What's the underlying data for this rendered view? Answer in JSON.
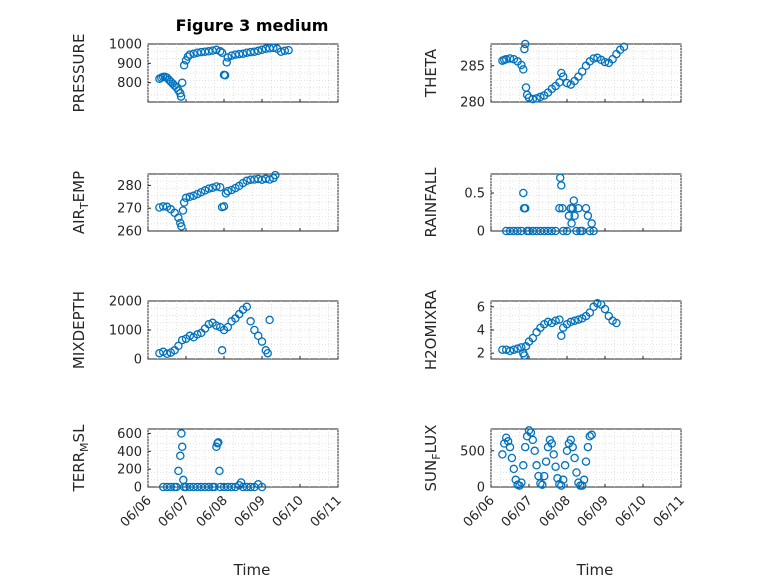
{
  "title": "Figure 3 medium",
  "xlabel": "Time",
  "marker_color": "#0072BD",
  "x_ticks": [
    "06/06",
    "06/07",
    "06/08",
    "06/09",
    "06/10",
    "06/11"
  ],
  "chart_data": [
    {
      "type": "scatter",
      "id": "pressure",
      "ylabel": "PRESSURE",
      "ylim": [
        700,
        1000
      ],
      "yticks": [
        800,
        900,
        1000
      ],
      "grid": true,
      "points": [
        [
          6.3,
          820
        ],
        [
          6.35,
          825
        ],
        [
          6.4,
          830
        ],
        [
          6.45,
          830
        ],
        [
          6.5,
          825
        ],
        [
          6.55,
          815
        ],
        [
          6.6,
          805
        ],
        [
          6.65,
          795
        ],
        [
          6.7,
          785
        ],
        [
          6.75,
          775
        ],
        [
          6.8,
          760
        ],
        [
          6.85,
          745
        ],
        [
          6.87,
          728
        ],
        [
          6.9,
          800
        ],
        [
          6.95,
          890
        ],
        [
          7.0,
          915
        ],
        [
          7.05,
          935
        ],
        [
          7.1,
          945
        ],
        [
          7.2,
          950
        ],
        [
          7.3,
          955
        ],
        [
          7.4,
          958
        ],
        [
          7.5,
          960
        ],
        [
          7.6,
          962
        ],
        [
          7.7,
          966
        ],
        [
          7.8,
          970
        ],
        [
          7.9,
          962
        ],
        [
          7.95,
          955
        ],
        [
          8.0,
          840
        ],
        [
          8.03,
          838
        ],
        [
          8.07,
          905
        ],
        [
          8.1,
          930
        ],
        [
          8.2,
          940
        ],
        [
          8.3,
          945
        ],
        [
          8.4,
          948
        ],
        [
          8.5,
          950
        ],
        [
          8.6,
          955
        ],
        [
          8.7,
          958
        ],
        [
          8.8,
          960
        ],
        [
          8.9,
          965
        ],
        [
          9.0,
          970
        ],
        [
          9.1,
          975
        ],
        [
          9.2,
          978
        ],
        [
          9.3,
          980
        ],
        [
          9.4,
          975
        ],
        [
          9.5,
          960
        ],
        [
          9.6,
          965
        ],
        [
          9.7,
          968
        ]
      ]
    },
    {
      "type": "scatter",
      "id": "theta",
      "ylabel": "THETA",
      "ylim": [
        280,
        288
      ],
      "yticks": [
        280,
        285
      ],
      "grid": true,
      "points": [
        [
          6.3,
          285.7
        ],
        [
          6.35,
          285.8
        ],
        [
          6.4,
          285.9
        ],
        [
          6.5,
          286.0
        ],
        [
          6.6,
          285.9
        ],
        [
          6.7,
          285.6
        ],
        [
          6.8,
          285.1
        ],
        [
          6.85,
          284.5
        ],
        [
          6.88,
          287.3
        ],
        [
          6.9,
          288.0
        ],
        [
          6.92,
          282.0
        ],
        [
          6.95,
          281.0
        ],
        [
          7.0,
          280.6
        ],
        [
          7.1,
          280.4
        ],
        [
          7.2,
          280.5
        ],
        [
          7.3,
          280.7
        ],
        [
          7.4,
          280.9
        ],
        [
          7.5,
          281.3
        ],
        [
          7.6,
          281.8
        ],
        [
          7.7,
          282.2
        ],
        [
          7.8,
          282.7
        ],
        [
          7.85,
          284.0
        ],
        [
          7.9,
          283.5
        ],
        [
          8.0,
          282.6
        ],
        [
          8.1,
          282.4
        ],
        [
          8.2,
          282.9
        ],
        [
          8.3,
          283.5
        ],
        [
          8.4,
          284.2
        ],
        [
          8.5,
          285.0
        ],
        [
          8.6,
          285.6
        ],
        [
          8.7,
          286.0
        ],
        [
          8.8,
          286.1
        ],
        [
          8.9,
          285.8
        ],
        [
          9.0,
          285.5
        ],
        [
          9.1,
          285.4
        ],
        [
          9.2,
          285.9
        ],
        [
          9.3,
          286.6
        ],
        [
          9.4,
          287.2
        ],
        [
          9.5,
          287.6
        ]
      ]
    },
    {
      "type": "scatter",
      "id": "air-temp",
      "ylabel": "AIR_TEMP",
      "ylim": [
        260,
        285
      ],
      "yticks": [
        260,
        270,
        280
      ],
      "grid": true,
      "points": [
        [
          6.3,
          270.3
        ],
        [
          6.4,
          270.8
        ],
        [
          6.5,
          270.6
        ],
        [
          6.6,
          269.5
        ],
        [
          6.7,
          268.0
        ],
        [
          6.8,
          265.8
        ],
        [
          6.85,
          263.5
        ],
        [
          6.88,
          262.0
        ],
        [
          6.92,
          269.0
        ],
        [
          6.95,
          272.5
        ],
        [
          7.0,
          274.5
        ],
        [
          7.1,
          275.0
        ],
        [
          7.2,
          275.5
        ],
        [
          7.3,
          276.2
        ],
        [
          7.4,
          277.0
        ],
        [
          7.5,
          277.8
        ],
        [
          7.6,
          278.6
        ],
        [
          7.7,
          279.0
        ],
        [
          7.8,
          279.5
        ],
        [
          7.9,
          279.2
        ],
        [
          7.95,
          270.5
        ],
        [
          8.0,
          270.8
        ],
        [
          8.05,
          276.5
        ],
        [
          8.1,
          277.5
        ],
        [
          8.2,
          278.0
        ],
        [
          8.3,
          278.8
        ],
        [
          8.4,
          279.8
        ],
        [
          8.5,
          281.0
        ],
        [
          8.6,
          282.0
        ],
        [
          8.7,
          282.5
        ],
        [
          8.8,
          282.6
        ],
        [
          8.9,
          282.8
        ],
        [
          9.0,
          282.5
        ],
        [
          9.1,
          282.9
        ],
        [
          9.2,
          282.6
        ],
        [
          9.3,
          283.2
        ],
        [
          9.35,
          284.5
        ]
      ]
    },
    {
      "type": "scatter",
      "id": "rainfall",
      "ylabel": "RAINFALL",
      "ylim": [
        0,
        0.75
      ],
      "yticks": [
        0,
        0.5
      ],
      "grid": true,
      "points": [
        [
          6.4,
          0
        ],
        [
          6.5,
          0
        ],
        [
          6.6,
          0
        ],
        [
          6.7,
          0
        ],
        [
          6.8,
          0
        ],
        [
          6.85,
          0.5
        ],
        [
          6.87,
          0.3
        ],
        [
          6.9,
          0.3
        ],
        [
          6.95,
          0
        ],
        [
          7.0,
          0
        ],
        [
          7.1,
          0
        ],
        [
          7.2,
          0
        ],
        [
          7.3,
          0
        ],
        [
          7.4,
          0
        ],
        [
          7.5,
          0
        ],
        [
          7.6,
          0
        ],
        [
          7.7,
          0
        ],
        [
          7.8,
          0.3
        ],
        [
          7.82,
          0.7
        ],
        [
          7.85,
          0.6
        ],
        [
          7.88,
          0.3
        ],
        [
          7.9,
          0
        ],
        [
          8.0,
          0
        ],
        [
          8.05,
          0.2
        ],
        [
          8.1,
          0.3
        ],
        [
          8.12,
          0.1
        ],
        [
          8.15,
          0.3
        ],
        [
          8.18,
          0.4
        ],
        [
          8.2,
          0.2
        ],
        [
          8.25,
          0
        ],
        [
          8.3,
          0.3
        ],
        [
          8.35,
          0
        ],
        [
          8.4,
          0
        ],
        [
          8.5,
          0.3
        ],
        [
          8.55,
          0.2
        ],
        [
          8.6,
          0
        ],
        [
          8.65,
          0.1
        ],
        [
          8.7,
          0
        ]
      ]
    },
    {
      "type": "scatter",
      "id": "mixdepth",
      "ylabel": "MIXDEPTH",
      "ylim": [
        0,
        2000
      ],
      "yticks": [
        0,
        1000,
        2000
      ],
      "grid": true,
      "points": [
        [
          6.3,
          200
        ],
        [
          6.4,
          250
        ],
        [
          6.5,
          180
        ],
        [
          6.6,
          220
        ],
        [
          6.7,
          300
        ],
        [
          6.8,
          450
        ],
        [
          6.9,
          650
        ],
        [
          7.0,
          700
        ],
        [
          7.1,
          800
        ],
        [
          7.2,
          750
        ],
        [
          7.3,
          850
        ],
        [
          7.4,
          900
        ],
        [
          7.5,
          1050
        ],
        [
          7.6,
          1200
        ],
        [
          7.7,
          1250
        ],
        [
          7.8,
          1150
        ],
        [
          7.9,
          1100
        ],
        [
          7.95,
          300
        ],
        [
          8.0,
          1000
        ],
        [
          8.1,
          1100
        ],
        [
          8.2,
          1300
        ],
        [
          8.3,
          1400
        ],
        [
          8.4,
          1550
        ],
        [
          8.5,
          1700
        ],
        [
          8.6,
          1800
        ],
        [
          8.7,
          1300
        ],
        [
          8.8,
          1000
        ],
        [
          8.9,
          800
        ],
        [
          9.0,
          600
        ],
        [
          9.1,
          300
        ],
        [
          9.15,
          200
        ],
        [
          9.2,
          1350
        ]
      ]
    },
    {
      "type": "scatter",
      "id": "h2omixra",
      "ylabel": "H2OMIXRA",
      "ylim": [
        1.5,
        6.5
      ],
      "yticks": [
        2,
        4,
        6
      ],
      "grid": true,
      "points": [
        [
          6.3,
          2.3
        ],
        [
          6.4,
          2.3
        ],
        [
          6.5,
          2.2
        ],
        [
          6.6,
          2.3
        ],
        [
          6.7,
          2.4
        ],
        [
          6.8,
          2.5
        ],
        [
          6.85,
          2.0
        ],
        [
          6.88,
          1.8
        ],
        [
          6.92,
          2.6
        ],
        [
          7.0,
          3.0
        ],
        [
          7.1,
          3.3
        ],
        [
          7.2,
          3.8
        ],
        [
          7.3,
          4.2
        ],
        [
          7.4,
          4.5
        ],
        [
          7.5,
          4.7
        ],
        [
          7.6,
          4.6
        ],
        [
          7.7,
          4.8
        ],
        [
          7.8,
          4.9
        ],
        [
          7.85,
          3.5
        ],
        [
          7.9,
          4.2
        ],
        [
          8.0,
          4.5
        ],
        [
          8.1,
          4.7
        ],
        [
          8.2,
          4.8
        ],
        [
          8.3,
          4.9
        ],
        [
          8.4,
          5.0
        ],
        [
          8.5,
          5.2
        ],
        [
          8.6,
          5.5
        ],
        [
          8.7,
          6.0
        ],
        [
          8.8,
          6.3
        ],
        [
          8.9,
          6.2
        ],
        [
          9.0,
          5.8
        ],
        [
          9.1,
          5.2
        ],
        [
          9.2,
          4.8
        ],
        [
          9.3,
          4.6
        ]
      ]
    },
    {
      "type": "scatter",
      "id": "terr-msl",
      "ylabel": "TERR_MSL",
      "ylim": [
        0,
        650
      ],
      "yticks": [
        0,
        200,
        400,
        600
      ],
      "grid": true,
      "points": [
        [
          6.4,
          0
        ],
        [
          6.5,
          0
        ],
        [
          6.6,
          0
        ],
        [
          6.7,
          0
        ],
        [
          6.75,
          0
        ],
        [
          6.8,
          180
        ],
        [
          6.85,
          350
        ],
        [
          6.88,
          600
        ],
        [
          6.9,
          450
        ],
        [
          6.93,
          80
        ],
        [
          6.95,
          0
        ],
        [
          7.0,
          0
        ],
        [
          7.1,
          0
        ],
        [
          7.2,
          0
        ],
        [
          7.3,
          0
        ],
        [
          7.4,
          0
        ],
        [
          7.5,
          0
        ],
        [
          7.6,
          0
        ],
        [
          7.7,
          0
        ],
        [
          7.75,
          0
        ],
        [
          7.8,
          450
        ],
        [
          7.83,
          490
        ],
        [
          7.85,
          500
        ],
        [
          7.88,
          180
        ],
        [
          7.9,
          0
        ],
        [
          8.0,
          0
        ],
        [
          8.1,
          0
        ],
        [
          8.2,
          0
        ],
        [
          8.3,
          0
        ],
        [
          8.4,
          20
        ],
        [
          8.45,
          50
        ],
        [
          8.5,
          0
        ],
        [
          8.6,
          0
        ],
        [
          8.7,
          0
        ],
        [
          8.8,
          0
        ],
        [
          8.9,
          30
        ],
        [
          9.0,
          0
        ]
      ]
    },
    {
      "type": "scatter",
      "id": "sun-flux",
      "ylabel": "SUN_FLUX",
      "ylim": [
        0,
        800
      ],
      "yticks": [
        0,
        500
      ],
      "grid": true,
      "points": [
        [
          6.3,
          450
        ],
        [
          6.35,
          600
        ],
        [
          6.4,
          680
        ],
        [
          6.45,
          630
        ],
        [
          6.5,
          550
        ],
        [
          6.55,
          400
        ],
        [
          6.6,
          250
        ],
        [
          6.65,
          100
        ],
        [
          6.7,
          30
        ],
        [
          6.75,
          20
        ],
        [
          6.8,
          60
        ],
        [
          6.85,
          300
        ],
        [
          6.9,
          550
        ],
        [
          6.95,
          700
        ],
        [
          7.0,
          780
        ],
        [
          7.05,
          750
        ],
        [
          7.1,
          650
        ],
        [
          7.15,
          500
        ],
        [
          7.2,
          300
        ],
        [
          7.25,
          150
        ],
        [
          7.3,
          50
        ],
        [
          7.35,
          30
        ],
        [
          7.4,
          150
        ],
        [
          7.45,
          350
        ],
        [
          7.5,
          550
        ],
        [
          7.55,
          650
        ],
        [
          7.6,
          600
        ],
        [
          7.65,
          450
        ],
        [
          7.7,
          280
        ],
        [
          7.75,
          120
        ],
        [
          7.8,
          40
        ],
        [
          7.85,
          20
        ],
        [
          7.9,
          100
        ],
        [
          7.95,
          300
        ],
        [
          8.0,
          500
        ],
        [
          8.05,
          600
        ],
        [
          8.1,
          650
        ],
        [
          8.15,
          550
        ],
        [
          8.2,
          400
        ],
        [
          8.25,
          200
        ],
        [
          8.3,
          60
        ],
        [
          8.35,
          20
        ],
        [
          8.4,
          20
        ],
        [
          8.45,
          100
        ],
        [
          8.5,
          350
        ],
        [
          8.55,
          550
        ],
        [
          8.6,
          700
        ],
        [
          8.65,
          720
        ]
      ]
    }
  ]
}
